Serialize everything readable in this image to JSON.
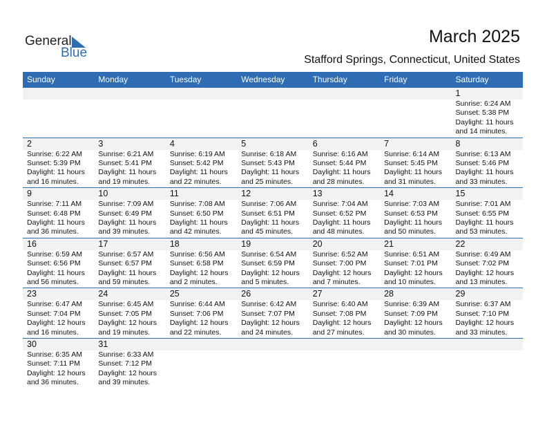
{
  "logo": {
    "general": "General",
    "blue": "Blue"
  },
  "header": {
    "title": "March 2025",
    "location": "Stafford Springs, Connecticut, United States"
  },
  "weekdays": [
    "Sunday",
    "Monday",
    "Tuesday",
    "Wednesday",
    "Thursday",
    "Friday",
    "Saturday"
  ],
  "weeks": [
    [
      null,
      null,
      null,
      null,
      null,
      null,
      {
        "day": 1,
        "sunrise": "Sunrise: 6:24 AM",
        "sunset": "Sunset: 5:38 PM",
        "daylight": "Daylight: 11 hours and 14 minutes."
      }
    ],
    [
      {
        "day": 2,
        "sunrise": "Sunrise: 6:22 AM",
        "sunset": "Sunset: 5:39 PM",
        "daylight": "Daylight: 11 hours and 16 minutes."
      },
      {
        "day": 3,
        "sunrise": "Sunrise: 6:21 AM",
        "sunset": "Sunset: 5:41 PM",
        "daylight": "Daylight: 11 hours and 19 minutes."
      },
      {
        "day": 4,
        "sunrise": "Sunrise: 6:19 AM",
        "sunset": "Sunset: 5:42 PM",
        "daylight": "Daylight: 11 hours and 22 minutes."
      },
      {
        "day": 5,
        "sunrise": "Sunrise: 6:18 AM",
        "sunset": "Sunset: 5:43 PM",
        "daylight": "Daylight: 11 hours and 25 minutes."
      },
      {
        "day": 6,
        "sunrise": "Sunrise: 6:16 AM",
        "sunset": "Sunset: 5:44 PM",
        "daylight": "Daylight: 11 hours and 28 minutes."
      },
      {
        "day": 7,
        "sunrise": "Sunrise: 6:14 AM",
        "sunset": "Sunset: 5:45 PM",
        "daylight": "Daylight: 11 hours and 31 minutes."
      },
      {
        "day": 8,
        "sunrise": "Sunrise: 6:13 AM",
        "sunset": "Sunset: 5:46 PM",
        "daylight": "Daylight: 11 hours and 33 minutes."
      }
    ],
    [
      {
        "day": 9,
        "sunrise": "Sunrise: 7:11 AM",
        "sunset": "Sunset: 6:48 PM",
        "daylight": "Daylight: 11 hours and 36 minutes."
      },
      {
        "day": 10,
        "sunrise": "Sunrise: 7:09 AM",
        "sunset": "Sunset: 6:49 PM",
        "daylight": "Daylight: 11 hours and 39 minutes."
      },
      {
        "day": 11,
        "sunrise": "Sunrise: 7:08 AM",
        "sunset": "Sunset: 6:50 PM",
        "daylight": "Daylight: 11 hours and 42 minutes."
      },
      {
        "day": 12,
        "sunrise": "Sunrise: 7:06 AM",
        "sunset": "Sunset: 6:51 PM",
        "daylight": "Daylight: 11 hours and 45 minutes."
      },
      {
        "day": 13,
        "sunrise": "Sunrise: 7:04 AM",
        "sunset": "Sunset: 6:52 PM",
        "daylight": "Daylight: 11 hours and 48 minutes."
      },
      {
        "day": 14,
        "sunrise": "Sunrise: 7:03 AM",
        "sunset": "Sunset: 6:53 PM",
        "daylight": "Daylight: 11 hours and 50 minutes."
      },
      {
        "day": 15,
        "sunrise": "Sunrise: 7:01 AM",
        "sunset": "Sunset: 6:55 PM",
        "daylight": "Daylight: 11 hours and 53 minutes."
      }
    ],
    [
      {
        "day": 16,
        "sunrise": "Sunrise: 6:59 AM",
        "sunset": "Sunset: 6:56 PM",
        "daylight": "Daylight: 11 hours and 56 minutes."
      },
      {
        "day": 17,
        "sunrise": "Sunrise: 6:57 AM",
        "sunset": "Sunset: 6:57 PM",
        "daylight": "Daylight: 11 hours and 59 minutes."
      },
      {
        "day": 18,
        "sunrise": "Sunrise: 6:56 AM",
        "sunset": "Sunset: 6:58 PM",
        "daylight": "Daylight: 12 hours and 2 minutes."
      },
      {
        "day": 19,
        "sunrise": "Sunrise: 6:54 AM",
        "sunset": "Sunset: 6:59 PM",
        "daylight": "Daylight: 12 hours and 5 minutes."
      },
      {
        "day": 20,
        "sunrise": "Sunrise: 6:52 AM",
        "sunset": "Sunset: 7:00 PM",
        "daylight": "Daylight: 12 hours and 7 minutes."
      },
      {
        "day": 21,
        "sunrise": "Sunrise: 6:51 AM",
        "sunset": "Sunset: 7:01 PM",
        "daylight": "Daylight: 12 hours and 10 minutes."
      },
      {
        "day": 22,
        "sunrise": "Sunrise: 6:49 AM",
        "sunset": "Sunset: 7:02 PM",
        "daylight": "Daylight: 12 hours and 13 minutes."
      }
    ],
    [
      {
        "day": 23,
        "sunrise": "Sunrise: 6:47 AM",
        "sunset": "Sunset: 7:04 PM",
        "daylight": "Daylight: 12 hours and 16 minutes."
      },
      {
        "day": 24,
        "sunrise": "Sunrise: 6:45 AM",
        "sunset": "Sunset: 7:05 PM",
        "daylight": "Daylight: 12 hours and 19 minutes."
      },
      {
        "day": 25,
        "sunrise": "Sunrise: 6:44 AM",
        "sunset": "Sunset: 7:06 PM",
        "daylight": "Daylight: 12 hours and 22 minutes."
      },
      {
        "day": 26,
        "sunrise": "Sunrise: 6:42 AM",
        "sunset": "Sunset: 7:07 PM",
        "daylight": "Daylight: 12 hours and 24 minutes."
      },
      {
        "day": 27,
        "sunrise": "Sunrise: 6:40 AM",
        "sunset": "Sunset: 7:08 PM",
        "daylight": "Daylight: 12 hours and 27 minutes."
      },
      {
        "day": 28,
        "sunrise": "Sunrise: 6:39 AM",
        "sunset": "Sunset: 7:09 PM",
        "daylight": "Daylight: 12 hours and 30 minutes."
      },
      {
        "day": 29,
        "sunrise": "Sunrise: 6:37 AM",
        "sunset": "Sunset: 7:10 PM",
        "daylight": "Daylight: 12 hours and 33 minutes."
      }
    ],
    [
      {
        "day": 30,
        "sunrise": "Sunrise: 6:35 AM",
        "sunset": "Sunset: 7:11 PM",
        "daylight": "Daylight: 12 hours and 36 minutes."
      },
      {
        "day": 31,
        "sunrise": "Sunrise: 6:33 AM",
        "sunset": "Sunset: 7:12 PM",
        "daylight": "Daylight: 12 hours and 39 minutes."
      }
    ]
  ]
}
